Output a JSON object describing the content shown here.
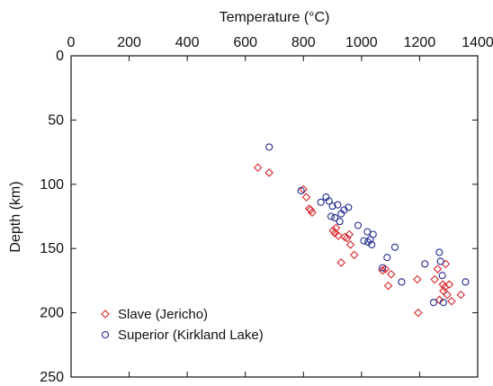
{
  "chart_data": {
    "type": "scatter",
    "xlabel": "Temperature (°C)",
    "ylabel": "Depth (km)",
    "xlim": [
      0,
      1400
    ],
    "ylim": [
      0,
      250
    ],
    "x_axis_position": "top",
    "y_axis_inverted": true,
    "grid": false,
    "legend_position": "bottom-left",
    "x_ticks": [
      "0",
      "200",
      "400",
      "600",
      "800",
      "1000",
      "1200",
      "1400"
    ],
    "y_ticks": [
      "0",
      "50",
      "100",
      "150",
      "200",
      "250"
    ],
    "series": [
      {
        "name": "Slave (Jericho)",
        "marker": "diamond",
        "color": "#d9262b",
        "points": [
          [
            643,
            87
          ],
          [
            682,
            91
          ],
          [
            800,
            104
          ],
          [
            810,
            110
          ],
          [
            820,
            119
          ],
          [
            825,
            120
          ],
          [
            830,
            122
          ],
          [
            902,
            136
          ],
          [
            908,
            138
          ],
          [
            912,
            134
          ],
          [
            920,
            140
          ],
          [
            930,
            161
          ],
          [
            942,
            141
          ],
          [
            950,
            142
          ],
          [
            958,
            139
          ],
          [
            962,
            147
          ],
          [
            975,
            155
          ],
          [
            1072,
            167
          ],
          [
            1082,
            166
          ],
          [
            1092,
            179
          ],
          [
            1102,
            170
          ],
          [
            1192,
            174
          ],
          [
            1195,
            200
          ],
          [
            1252,
            174
          ],
          [
            1262,
            166
          ],
          [
            1268,
            190
          ],
          [
            1280,
            178
          ],
          [
            1282,
            183
          ],
          [
            1287,
            180
          ],
          [
            1290,
            162
          ],
          [
            1295,
            186
          ],
          [
            1302,
            178
          ],
          [
            1310,
            191
          ],
          [
            1342,
            186
          ]
        ]
      },
      {
        "name": "Superior (Kirkland Lake)",
        "marker": "circle",
        "color": "#1f2a8c",
        "points": [
          [
            682,
            71
          ],
          [
            792,
            105
          ],
          [
            860,
            114
          ],
          [
            878,
            110
          ],
          [
            888,
            113
          ],
          [
            895,
            125
          ],
          [
            900,
            117
          ],
          [
            908,
            126
          ],
          [
            918,
            116
          ],
          [
            925,
            129
          ],
          [
            930,
            123
          ],
          [
            940,
            120
          ],
          [
            955,
            118
          ],
          [
            988,
            132
          ],
          [
            1008,
            144
          ],
          [
            1020,
            137
          ],
          [
            1022,
            145
          ],
          [
            1030,
            143
          ],
          [
            1035,
            147
          ],
          [
            1040,
            139
          ],
          [
            1072,
            165
          ],
          [
            1088,
            157
          ],
          [
            1115,
            149
          ],
          [
            1138,
            176
          ],
          [
            1218,
            162
          ],
          [
            1248,
            192
          ],
          [
            1268,
            153
          ],
          [
            1272,
            160
          ],
          [
            1278,
            171
          ],
          [
            1282,
            192
          ],
          [
            1358,
            176
          ]
        ]
      }
    ]
  }
}
